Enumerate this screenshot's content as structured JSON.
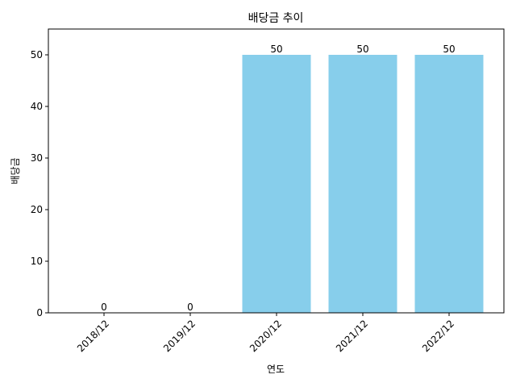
{
  "chart_data": {
    "type": "bar",
    "title": "배당금 추이",
    "xlabel": "연도",
    "ylabel": "배당금",
    "categories": [
      "2018/12",
      "2019/12",
      "2020/12",
      "2021/12",
      "2022/12"
    ],
    "values": [
      0,
      0,
      50,
      50,
      50
    ],
    "data_labels": [
      "0",
      "0",
      "50",
      "50",
      "50"
    ],
    "ylim": [
      0,
      55
    ],
    "yticks": [
      0,
      10,
      20,
      30,
      40,
      50
    ],
    "bar_color": "#87CEEB",
    "grid": false,
    "legend": "none"
  }
}
